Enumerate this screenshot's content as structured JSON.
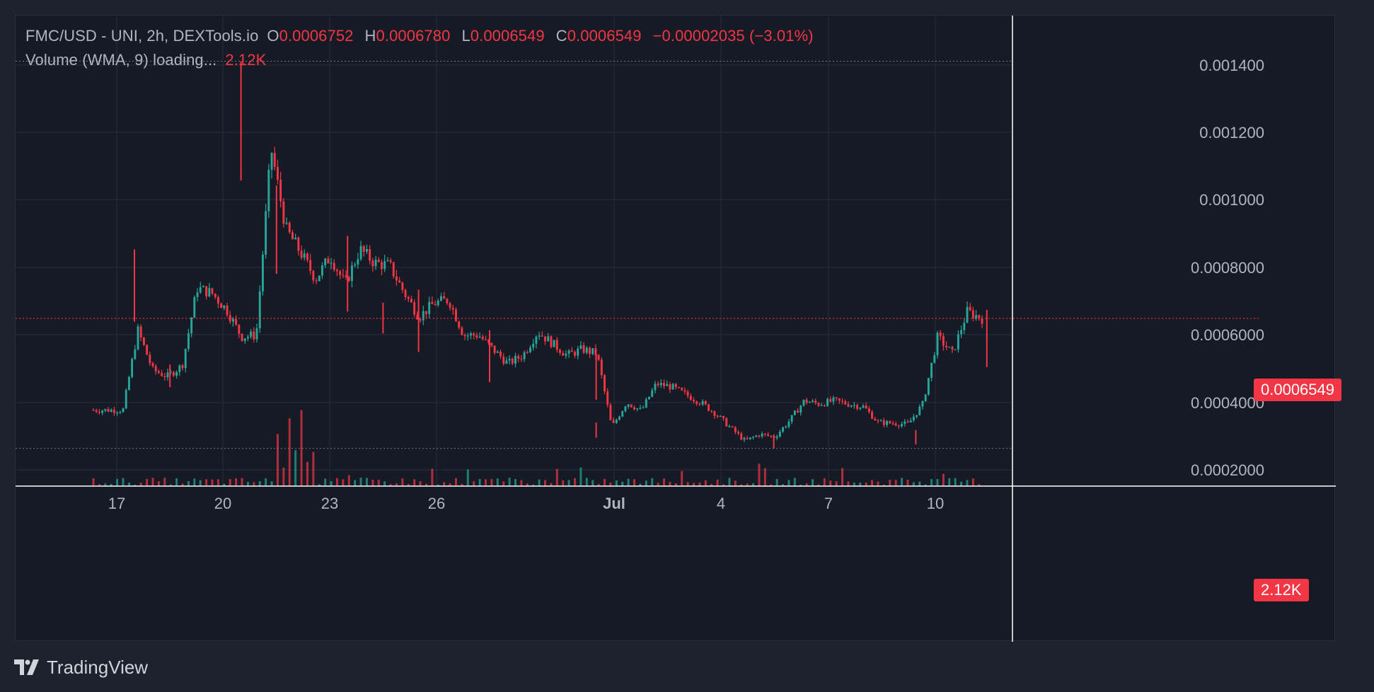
{
  "header": {
    "symbol": "FMC/USD - UNI, 2h, DEXTools.io",
    "open_label": "O",
    "open": "0.0006752",
    "high_label": "H",
    "high": "0.0006780",
    "low_label": "L",
    "low": "0.0006549",
    "close_label": "C",
    "close": "0.0006549",
    "change": "−0.00002035 (−3.01%)"
  },
  "volume_legend": {
    "label": "Volume (WMA, 9) loading...",
    "value": "2.12K"
  },
  "branding": {
    "text": "TradingView"
  },
  "price_label": "0.0006549",
  "volume_label": "2.12K",
  "colors": {
    "up": "#26a69a",
    "down": "#f23645",
    "background": "#161a25",
    "page": "#1e222d",
    "grid": "#2a2e39",
    "text": "#b2b5be"
  },
  "chart_data": {
    "type": "candlestick",
    "ylim": [
      0.0002,
      0.00145
    ],
    "y_ticks": [
      "0.001400",
      "0.001200",
      "0.001000",
      "0.0008000",
      "0.0006000",
      "0.0004000",
      "0.0002000"
    ],
    "x_ticks": [
      "17",
      "20",
      "23",
      "26",
      "Jul",
      "4",
      "7",
      "10"
    ],
    "last_price": 0.0006549,
    "session_high": 0.00142,
    "session_low": 0.000268,
    "price_path": [
      [
        "Jun 16",
        0.000382
      ],
      [
        "Jun 17",
        0.000382
      ],
      [
        "Jun 17",
        0.000382
      ],
      [
        "Jun 17",
        0.00062
      ],
      [
        "Jun 18",
        0.000502
      ],
      [
        "Jun 18",
        0.000482
      ],
      [
        "Jun 18",
        0.000515
      ],
      [
        "Jun 19",
        0.000745
      ],
      [
        "Jun 19",
        0.00073
      ],
      [
        "Jun 19",
        0.00068
      ],
      [
        "Jun 20",
        0.0006
      ],
      [
        "Jun 20",
        0.000605
      ],
      [
        "Jun 20",
        0.00116
      ],
      [
        "Jun 21",
        0.00092
      ],
      [
        "Jun 21",
        0.00085
      ],
      [
        "Jun 21",
        0.000772
      ],
      [
        "Jun 22",
        0.00084
      ],
      [
        "Jun 22",
        0.000755
      ],
      [
        "Jun 23",
        0.00086
      ],
      [
        "Jun 23",
        0.00082
      ],
      [
        "Jun 23",
        0.000812
      ],
      [
        "Jun 24",
        0.00073
      ],
      [
        "Jun 24",
        0.00066
      ],
      [
        "Jun 25",
        0.0007
      ],
      [
        "Jun 25",
        0.00071
      ],
      [
        "Jun 26",
        0.000605
      ],
      [
        "Jun 26",
        0.000605
      ],
      [
        "Jun 27",
        0.000562
      ],
      [
        "Jun 27",
        0.00052
      ],
      [
        "Jun 27",
        0.000545
      ],
      [
        "Jun 28",
        0.000615
      ],
      [
        "Jun 28",
        0.00058
      ],
      [
        "Jun 29",
        0.000545
      ],
      [
        "Jun 29",
        0.000563
      ],
      [
        "Jun 30",
        0.00055
      ],
      [
        "Jun 30",
        0.00033
      ],
      [
        "Jul 1",
        0.000405
      ],
      [
        "Jul 1",
        0.00038
      ],
      [
        "Jul 2",
        0.00046
      ],
      [
        "Jul 2",
        0.000452
      ],
      [
        "Jul 3",
        0.000428
      ],
      [
        "Jul 4",
        0.000405
      ],
      [
        "Jul 4",
        0.000372
      ],
      [
        "Jul 5",
        0.00033
      ],
      [
        "Jul 5",
        0.00029
      ],
      [
        "Jul 6",
        0.00031
      ],
      [
        "Jul 6",
        0.000302
      ],
      [
        "Jul 7",
        0.00035
      ],
      [
        "Jul 7",
        0.00041
      ],
      [
        "Jul 8",
        0.0004
      ],
      [
        "Jul 8",
        0.00041
      ],
      [
        "Jul 9",
        0.0004
      ],
      [
        "Jul 9",
        0.000392
      ],
      [
        "Jul 9",
        0.000345
      ],
      [
        "Jul 10",
        0.000343
      ],
      [
        "Jul 10",
        0.00034
      ],
      [
        "Jul 10",
        0.0004
      ],
      [
        "Jul 11",
        0.0006
      ],
      [
        "Jul 11",
        0.00055
      ],
      [
        "Jul 11",
        0.000675
      ],
      [
        "Jul 11",
        0.0006549
      ]
    ],
    "spike_highs": [
      [
        "Jun 17",
        0.00086
      ],
      [
        "Jun 20",
        0.00142
      ],
      [
        "Jun 21",
        0.00105
      ],
      [
        "Jun 23",
        0.0009
      ],
      [
        "Jun 25",
        0.00074
      ],
      [
        "Jun 27",
        0.00062
      ],
      [
        "Jun 30",
        0.00055
      ],
      [
        "Jul 11",
        0.00068
      ]
    ],
    "spike_lows": [
      [
        "Jun 18",
        0.00045
      ],
      [
        "Jun 24",
        0.00061
      ],
      [
        "Jun 27",
        0.00048
      ],
      [
        "Jun 30",
        0.0003
      ],
      [
        "Jul 5",
        0.000268
      ],
      [
        "Jul 9",
        0.00028
      ]
    ]
  }
}
